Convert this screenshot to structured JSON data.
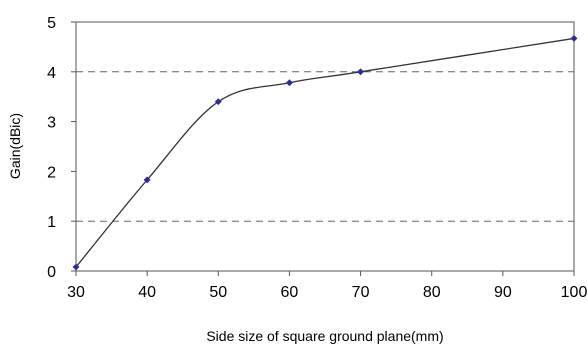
{
  "chart_data": {
    "type": "line",
    "title": "",
    "xlabel": "Side size of square ground plane(mm)",
    "ylabel": "Gain(dBic)",
    "xlim": [
      30,
      100
    ],
    "ylim": [
      0,
      5
    ],
    "x_ticks": [
      "30",
      "40",
      "50",
      "60",
      "70",
      "80",
      "90",
      "100"
    ],
    "y_ticks": [
      "0",
      "1",
      "2",
      "3",
      "4",
      "5"
    ],
    "gridlines_y": [
      1,
      4
    ],
    "grid_style": "dashed",
    "series": [
      {
        "x": [
          30,
          40,
          50,
          60,
          70,
          100
        ],
        "y": [
          0.08,
          1.83,
          3.4,
          3.78,
          4.0,
          4.67
        ],
        "marker": "diamond",
        "marker_color": "#2b2b9a",
        "line_color": "#333333"
      }
    ]
  }
}
